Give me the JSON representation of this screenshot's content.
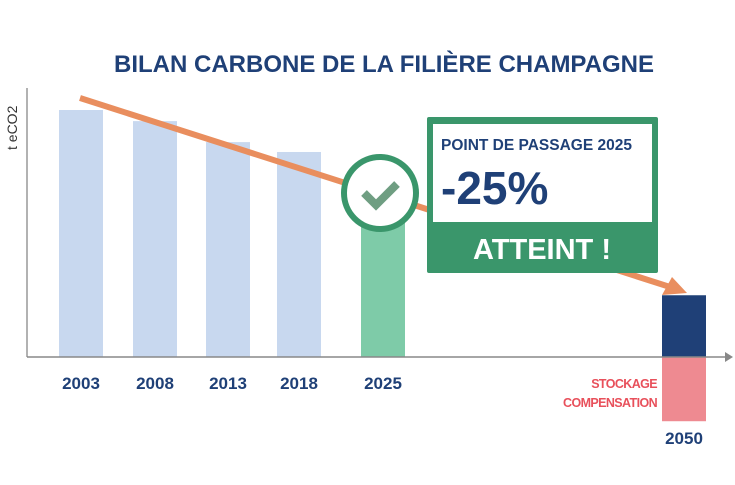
{
  "chart_data": {
    "type": "bar",
    "title": "BILAN CARBONE DE LA FILIÈRE CHAMPAGNE",
    "ylabel": "t eCO2",
    "xlabel": "",
    "categories": [
      "2003",
      "2008",
      "2013",
      "2018",
      "2025",
      "2050"
    ],
    "values": [
      100,
      95.5,
      87,
      83,
      75,
      25
    ],
    "negative_values": {
      "2050": -26
    },
    "negative_label": [
      "STOCKAGE",
      "COMPENSATION"
    ],
    "ylim": [
      -30,
      105
    ],
    "grid": false,
    "trend": {
      "type": "arrow",
      "from": "2003",
      "to": "2050"
    },
    "callout": {
      "heading": "POINT DE PASSAGE 2025",
      "value": "-25%",
      "status": "ATTEINT !",
      "icon": "check-circle-icon"
    },
    "colors": {
      "historic_bars": "#c8d8ef",
      "bar_2025": "#7ecba8",
      "bar_2050_positive": "#1f4077",
      "bar_2050_negative": "#ee8a91",
      "trend": "#e98e5e",
      "callout_green": "#3a966b",
      "text_navy": "#1f4077",
      "text_red": "#e8505b"
    }
  }
}
